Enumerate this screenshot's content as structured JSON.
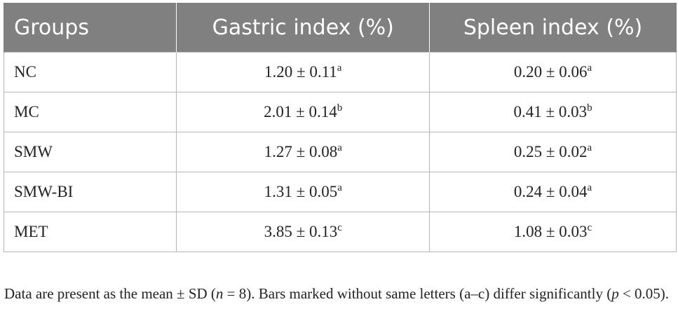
{
  "table": {
    "header": [
      "Groups",
      "Gastric index (%)",
      "Spleen index (%)"
    ],
    "rows": [
      [
        "NC",
        {
          "text": "1.20 ± 0.11",
          "sup": "a"
        },
        {
          "text": "0.20 ± 0.06",
          "sup": "a"
        }
      ],
      [
        "MC",
        {
          "text": "2.01 ± 0.14",
          "sup": "b"
        },
        {
          "text": "0.41 ± 0.03",
          "sup": "b"
        }
      ],
      [
        "SMW",
        {
          "text": "1.27 ± 0.08",
          "sup": "a"
        },
        {
          "text": "0.25 ± 0.02",
          "sup": "a"
        }
      ],
      [
        "SMW-BI",
        {
          "text": "1.31 ± 0.05",
          "sup": "a"
        },
        {
          "text": "0.24 ± 0.04",
          "sup": "a"
        }
      ],
      [
        "MET",
        {
          "text": "3.85 ± 0.13",
          "sup": "c"
        },
        {
          "text": "1.08 ± 0.03",
          "sup": "c"
        }
      ]
    ]
  },
  "footnote": [
    {
      "text": "Data are present as the mean ± SD ("
    },
    {
      "text": "n",
      "italic": true
    },
    {
      "text": " = 8). Bars marked without same letters (a–c) differ significantly ("
    },
    {
      "text": "p",
      "italic": true
    },
    {
      "text": " < 0.05)."
    }
  ]
}
